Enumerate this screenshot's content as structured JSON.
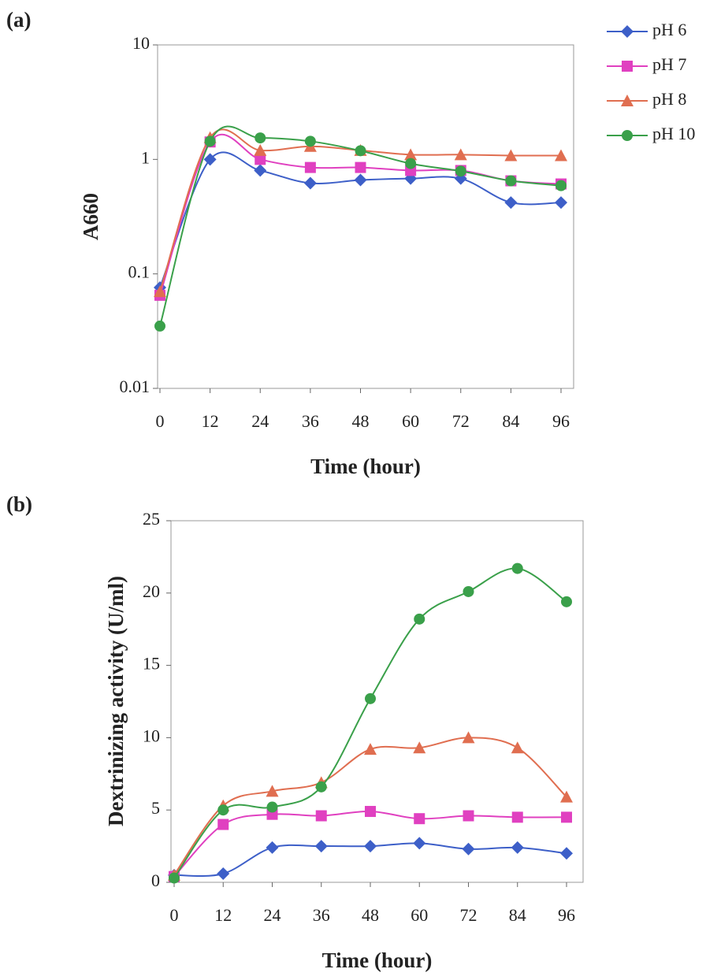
{
  "chart_data": [
    {
      "type": "line",
      "panel_label": "(a)",
      "xlabel": "Time (hour)",
      "ylabel": "A660",
      "ylog": true,
      "legend": "upper right",
      "x": [
        0,
        12,
        24,
        36,
        48,
        60,
        72,
        84,
        96
      ],
      "xlim": [
        0,
        96
      ],
      "xticks": [
        0,
        12,
        24,
        36,
        48,
        60,
        72,
        84,
        96
      ],
      "ylim": [
        0.01,
        10
      ],
      "yticks": [
        0.01,
        0.1,
        1,
        10
      ],
      "series": [
        {
          "name": "pH 6",
          "color": "#3d5fc8",
          "marker": "diamond",
          "values": [
            0.076,
            1.0,
            0.8,
            0.62,
            0.66,
            0.68,
            0.68,
            0.42,
            0.42
          ]
        },
        {
          "name": "pH 7",
          "color": "#e040c0",
          "marker": "square",
          "values": [
            0.065,
            1.42,
            1.0,
            0.85,
            0.85,
            0.8,
            0.8,
            0.65,
            0.61
          ]
        },
        {
          "name": "pH 8",
          "color": "#e06e50",
          "marker": "triangle",
          "values": [
            0.07,
            1.55,
            1.2,
            1.3,
            1.2,
            1.1,
            1.1,
            1.08,
            1.08
          ]
        },
        {
          "name": "pH 10",
          "color": "#3aa04a",
          "marker": "circle",
          "values": [
            0.035,
            1.44,
            1.54,
            1.44,
            1.19,
            0.92,
            0.79,
            0.65,
            0.59
          ]
        }
      ]
    },
    {
      "type": "line",
      "panel_label": "(b)",
      "xlabel": "Time (hour)",
      "ylabel": "Dextrinizing activity (U/ml)",
      "ylog": false,
      "x": [
        0,
        12,
        24,
        36,
        48,
        60,
        72,
        84,
        96
      ],
      "xlim": [
        0,
        96
      ],
      "xticks": [
        0,
        12,
        24,
        36,
        48,
        60,
        72,
        84,
        96
      ],
      "ylim": [
        0,
        25
      ],
      "yticks": [
        0,
        5,
        10,
        15,
        20,
        25
      ],
      "series": [
        {
          "color": "#3d5fc8",
          "marker": "diamond",
          "values": [
            0.5,
            0.6,
            2.4,
            2.5,
            2.5,
            2.7,
            2.3,
            2.4,
            2.0
          ]
        },
        {
          "color": "#e040c0",
          "marker": "square",
          "values": [
            0.4,
            4.0,
            4.7,
            4.6,
            4.9,
            4.4,
            4.6,
            4.5,
            4.5
          ]
        },
        {
          "color": "#e06e50",
          "marker": "triangle",
          "values": [
            0.5,
            5.3,
            6.3,
            6.9,
            9.2,
            9.3,
            10.0,
            9.3,
            5.9
          ]
        },
        {
          "color": "#3aa04a",
          "marker": "circle",
          "values": [
            0.3,
            5.0,
            5.2,
            6.6,
            12.7,
            18.2,
            20.1,
            21.7,
            19.4
          ]
        }
      ]
    }
  ]
}
